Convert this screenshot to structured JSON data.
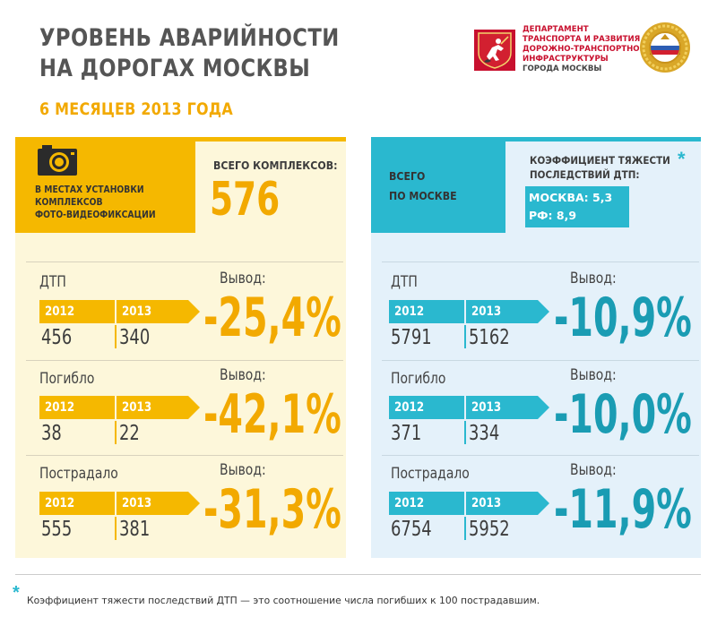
{
  "header": {
    "title_line1": "УРОВЕНЬ АВАРИЙНОСТИ",
    "title_line2": "НА ДОРОГАХ МОСКВЫ",
    "subtitle": "6 МЕСЯЦЕВ 2013 ГОДА"
  },
  "department": {
    "line1": "ДЕПАРТАМЕНТ",
    "line2": "ТРАНСПОРТА И РАЗВИТИЯ",
    "line3": "ДОРОЖНО-ТРАНСПОРТНОЙ",
    "line4": "ИНФРАСТРУКТУРЫ",
    "line5": "ГОРОДА МОСКВЫ"
  },
  "left": {
    "label_line1": "В МЕСТАХ УСТАНОВКИ",
    "label_line2": "КОМПЛЕКСОВ",
    "label_line3": "ФОТО-ВИДЕОФИКСАЦИИ",
    "total_label": "ВСЕГО КОМПЛЕКСОВ:",
    "total_value": "576",
    "rows": [
      {
        "label": "ДТП",
        "year1": "2012",
        "year2": "2013",
        "value1": "456",
        "value2": "340",
        "conclusion_label": "Вывод:",
        "change": "-25,4%"
      },
      {
        "label": "Погибло",
        "year1": "2012",
        "year2": "2013",
        "value1": "38",
        "value2": "22",
        "conclusion_label": "Вывод:",
        "change": "-42,1%"
      },
      {
        "label": "Пострадало",
        "year1": "2012",
        "year2": "2013",
        "value1": "555",
        "value2": "381",
        "conclusion_label": "Вывод:",
        "change": "-31,3%"
      }
    ]
  },
  "right": {
    "label_line1": "ВСЕГО",
    "label_line2": "ПО МОСКВЕ",
    "coef_line1": "КОЭФФИЦИЕНТ ТЯЖЕСТИ",
    "coef_line2": "ПОСЛЕДСТВИЙ ДТП:",
    "coef_star": "*",
    "coef_moscow": "МОСКВА: 5,3",
    "coef_rf": "РФ: 8,9",
    "rows": [
      {
        "label": "ДТП",
        "year1": "2012",
        "year2": "2013",
        "value1": "5791",
        "value2": "5162",
        "conclusion_label": "Вывод:",
        "change": "-10,9%"
      },
      {
        "label": "Погибло",
        "year1": "2012",
        "year2": "2013",
        "value1": "371",
        "value2": "334",
        "conclusion_label": "Вывод:",
        "change": "-10,0%"
      },
      {
        "label": "Пострадало",
        "year1": "2012",
        "year2": "2013",
        "value1": "6754",
        "value2": "5952",
        "conclusion_label": "Вывод:",
        "change": "-11,9%"
      }
    ]
  },
  "footnote": {
    "star": "*",
    "text": "Коэффициент тяжести последствий ДТП — это соотношение числа погибших к 100 пострадавшим."
  },
  "colors": {
    "yellow_accent": "#f5b800",
    "cyan_accent": "#2ab8cf",
    "moscow_red": "#c8102e"
  },
  "icons": {
    "camera": "camera-icon",
    "moscow_emblem": "moscow-coat-of-arms",
    "gibdd_emblem": "gibdd-emblem"
  }
}
